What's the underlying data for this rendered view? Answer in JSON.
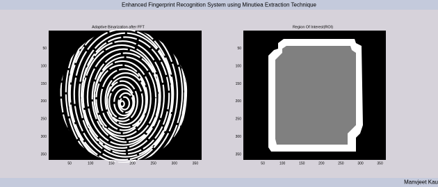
{
  "window": {
    "title": "Enhanced Fingerprint Recognition System using Minutiea Extraction Technique",
    "footer": "Manvjeet Kau"
  },
  "panels": [
    {
      "title": "Adaptive Binarization after FFT",
      "xticks": [
        50,
        100,
        150,
        200,
        250,
        300,
        350
      ],
      "yticks": [
        50,
        100,
        150,
        200,
        250,
        300,
        350
      ]
    },
    {
      "title": "Region Of Interest(ROI)",
      "xticks": [
        50,
        100,
        150,
        200,
        250,
        300,
        350
      ],
      "yticks": [
        50,
        100,
        150,
        200,
        250,
        300,
        350
      ]
    }
  ]
}
